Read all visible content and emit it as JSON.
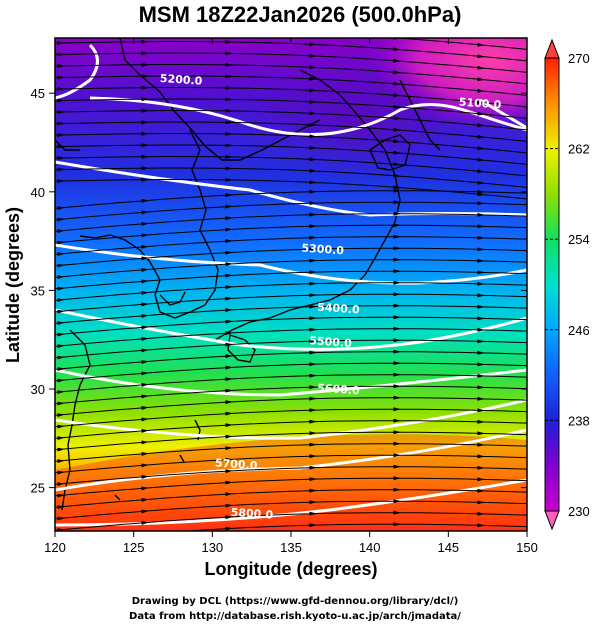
{
  "title": "MSM 18Z22Jan2026 (500.0hPa)",
  "x_axis": {
    "label": "Longitude (degrees)",
    "range": [
      120,
      150
    ],
    "ticks": [
      "120",
      "125",
      "130",
      "135",
      "140",
      "145",
      "150"
    ]
  },
  "y_axis": {
    "label": "Latitude  (degrees)",
    "range": [
      22.8,
      47.8
    ],
    "ticks": [
      "25",
      "30",
      "35",
      "40",
      "45"
    ]
  },
  "colorbar": {
    "range": [
      230,
      270
    ],
    "ticks": [
      "230",
      "238",
      "246",
      "254",
      "262",
      "270"
    ],
    "colors": [
      "#ff3399",
      "#cc00cc",
      "#6a00cc",
      "#2030e0",
      "#1080ff",
      "#00d8e8",
      "#10e070",
      "#80e000",
      "#f0f000",
      "#ff8000",
      "#ff2000"
    ]
  },
  "contours": [
    {
      "label": "5100.0",
      "lon": 147,
      "lat": 44.3
    },
    {
      "label": "5200.0",
      "lon": 128,
      "lat": 45.5
    },
    {
      "label": "5300.0",
      "lon": 137,
      "lat": 36.9
    },
    {
      "label": "5400.0",
      "lon": 138,
      "lat": 33.9
    },
    {
      "label": "5500.0",
      "lon": 137.5,
      "lat": 32.2
    },
    {
      "label": "5600.0",
      "lon": 138,
      "lat": 29.8
    },
    {
      "label": "5700.0",
      "lon": 131.5,
      "lat": 26.0
    },
    {
      "label": "5800.0",
      "lon": 132.5,
      "lat": 23.5
    }
  ],
  "credits": {
    "line1": "Drawing by DCL (https://www.gfd-dennou.org/library/dcl/)",
    "line2": "Data from http://database.rish.kyoto-u.ac.jp/arch/jmadata/"
  }
}
